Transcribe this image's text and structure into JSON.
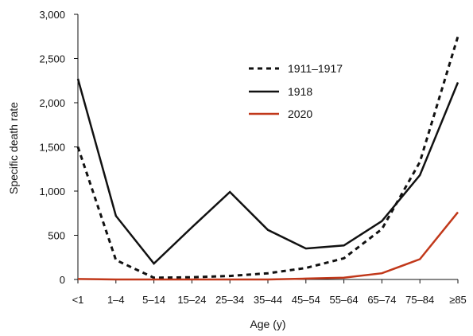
{
  "chart_data": {
    "type": "line",
    "xlabel": "Age (y)",
    "ylabel": "Specific death rate",
    "ylim": [
      0,
      3000
    ],
    "y_ticks": [
      0,
      500,
      1000,
      1500,
      2000,
      2500,
      3000
    ],
    "y_tick_labels": [
      "0",
      "500",
      "1,000",
      "1,500",
      "2,000",
      "2,500",
      "3,000"
    ],
    "categories": [
      "<1",
      "1–4",
      "5–14",
      "15–24",
      "25–34",
      "35–44",
      "45–54",
      "55–64",
      "65–74",
      "75–84",
      "≥85"
    ],
    "grid": false,
    "legend_position": "top-center",
    "series": [
      {
        "name": "1911–1917",
        "style": "dotted",
        "color": "#111111",
        "values": [
          1500,
          220,
          20,
          25,
          40,
          70,
          130,
          240,
          570,
          1330,
          2750
        ]
      },
      {
        "name": "1918",
        "style": "solid",
        "color": "#111111",
        "values": [
          2270,
          720,
          180,
          590,
          990,
          560,
          350,
          385,
          660,
          1180,
          2230
        ]
      },
      {
        "name": "2020",
        "style": "solid",
        "color": "#c1381a",
        "values": [
          5,
          0,
          0,
          0,
          0,
          0,
          10,
          20,
          70,
          230,
          760
        ]
      }
    ]
  }
}
